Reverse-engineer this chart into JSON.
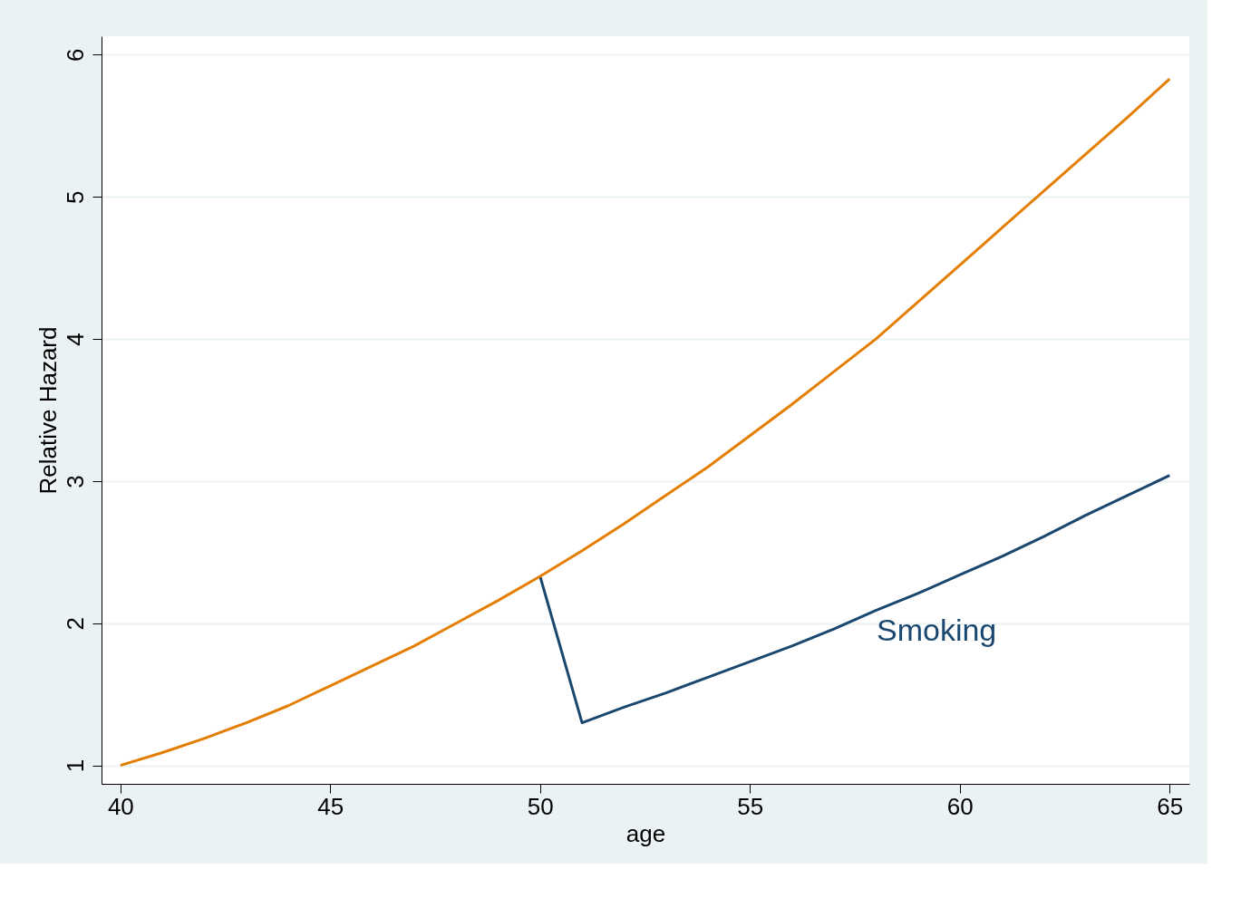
{
  "chart_data": {
    "type": "line",
    "xlabel": "age",
    "ylabel": "Relative Hazard",
    "xlim": [
      39.55,
      65.47
    ],
    "ylim": [
      0.87,
      6.13
    ],
    "xticks": [
      40,
      45,
      50,
      55,
      60,
      65
    ],
    "yticks": [
      1,
      2,
      3,
      4,
      5,
      6
    ],
    "grid": "y",
    "marker": "none",
    "line_style": "solid",
    "series": [
      {
        "color": "#1a476f",
        "x": [
          50,
          51,
          52,
          53,
          54,
          55,
          56,
          57,
          58,
          59,
          60,
          61,
          62,
          63,
          64,
          65
        ],
        "values": [
          2.33,
          1.3,
          1.41,
          1.51,
          1.62,
          1.73,
          1.84,
          1.96,
          2.09,
          2.21,
          2.34,
          2.47,
          2.61,
          2.76,
          2.9,
          3.04
        ]
      },
      {
        "color": "#e37e00",
        "x": [
          40,
          41,
          42,
          43,
          44,
          45,
          46,
          47,
          48,
          49,
          50,
          51,
          52,
          53,
          54,
          55,
          56,
          57,
          58,
          59,
          60,
          61,
          62,
          63,
          64,
          65
        ],
        "values": [
          1,
          1.09,
          1.19,
          1.3,
          1.42,
          1.56,
          1.7,
          1.84,
          2.0,
          2.16,
          2.33,
          2.51,
          2.7,
          2.9,
          3.1,
          3.32,
          3.54,
          3.77,
          4.0,
          4.26,
          4.52,
          4.78,
          5.04,
          5.3,
          5.56,
          5.83
        ]
      }
    ],
    "annotations": [
      "Smoking"
    ]
  }
}
